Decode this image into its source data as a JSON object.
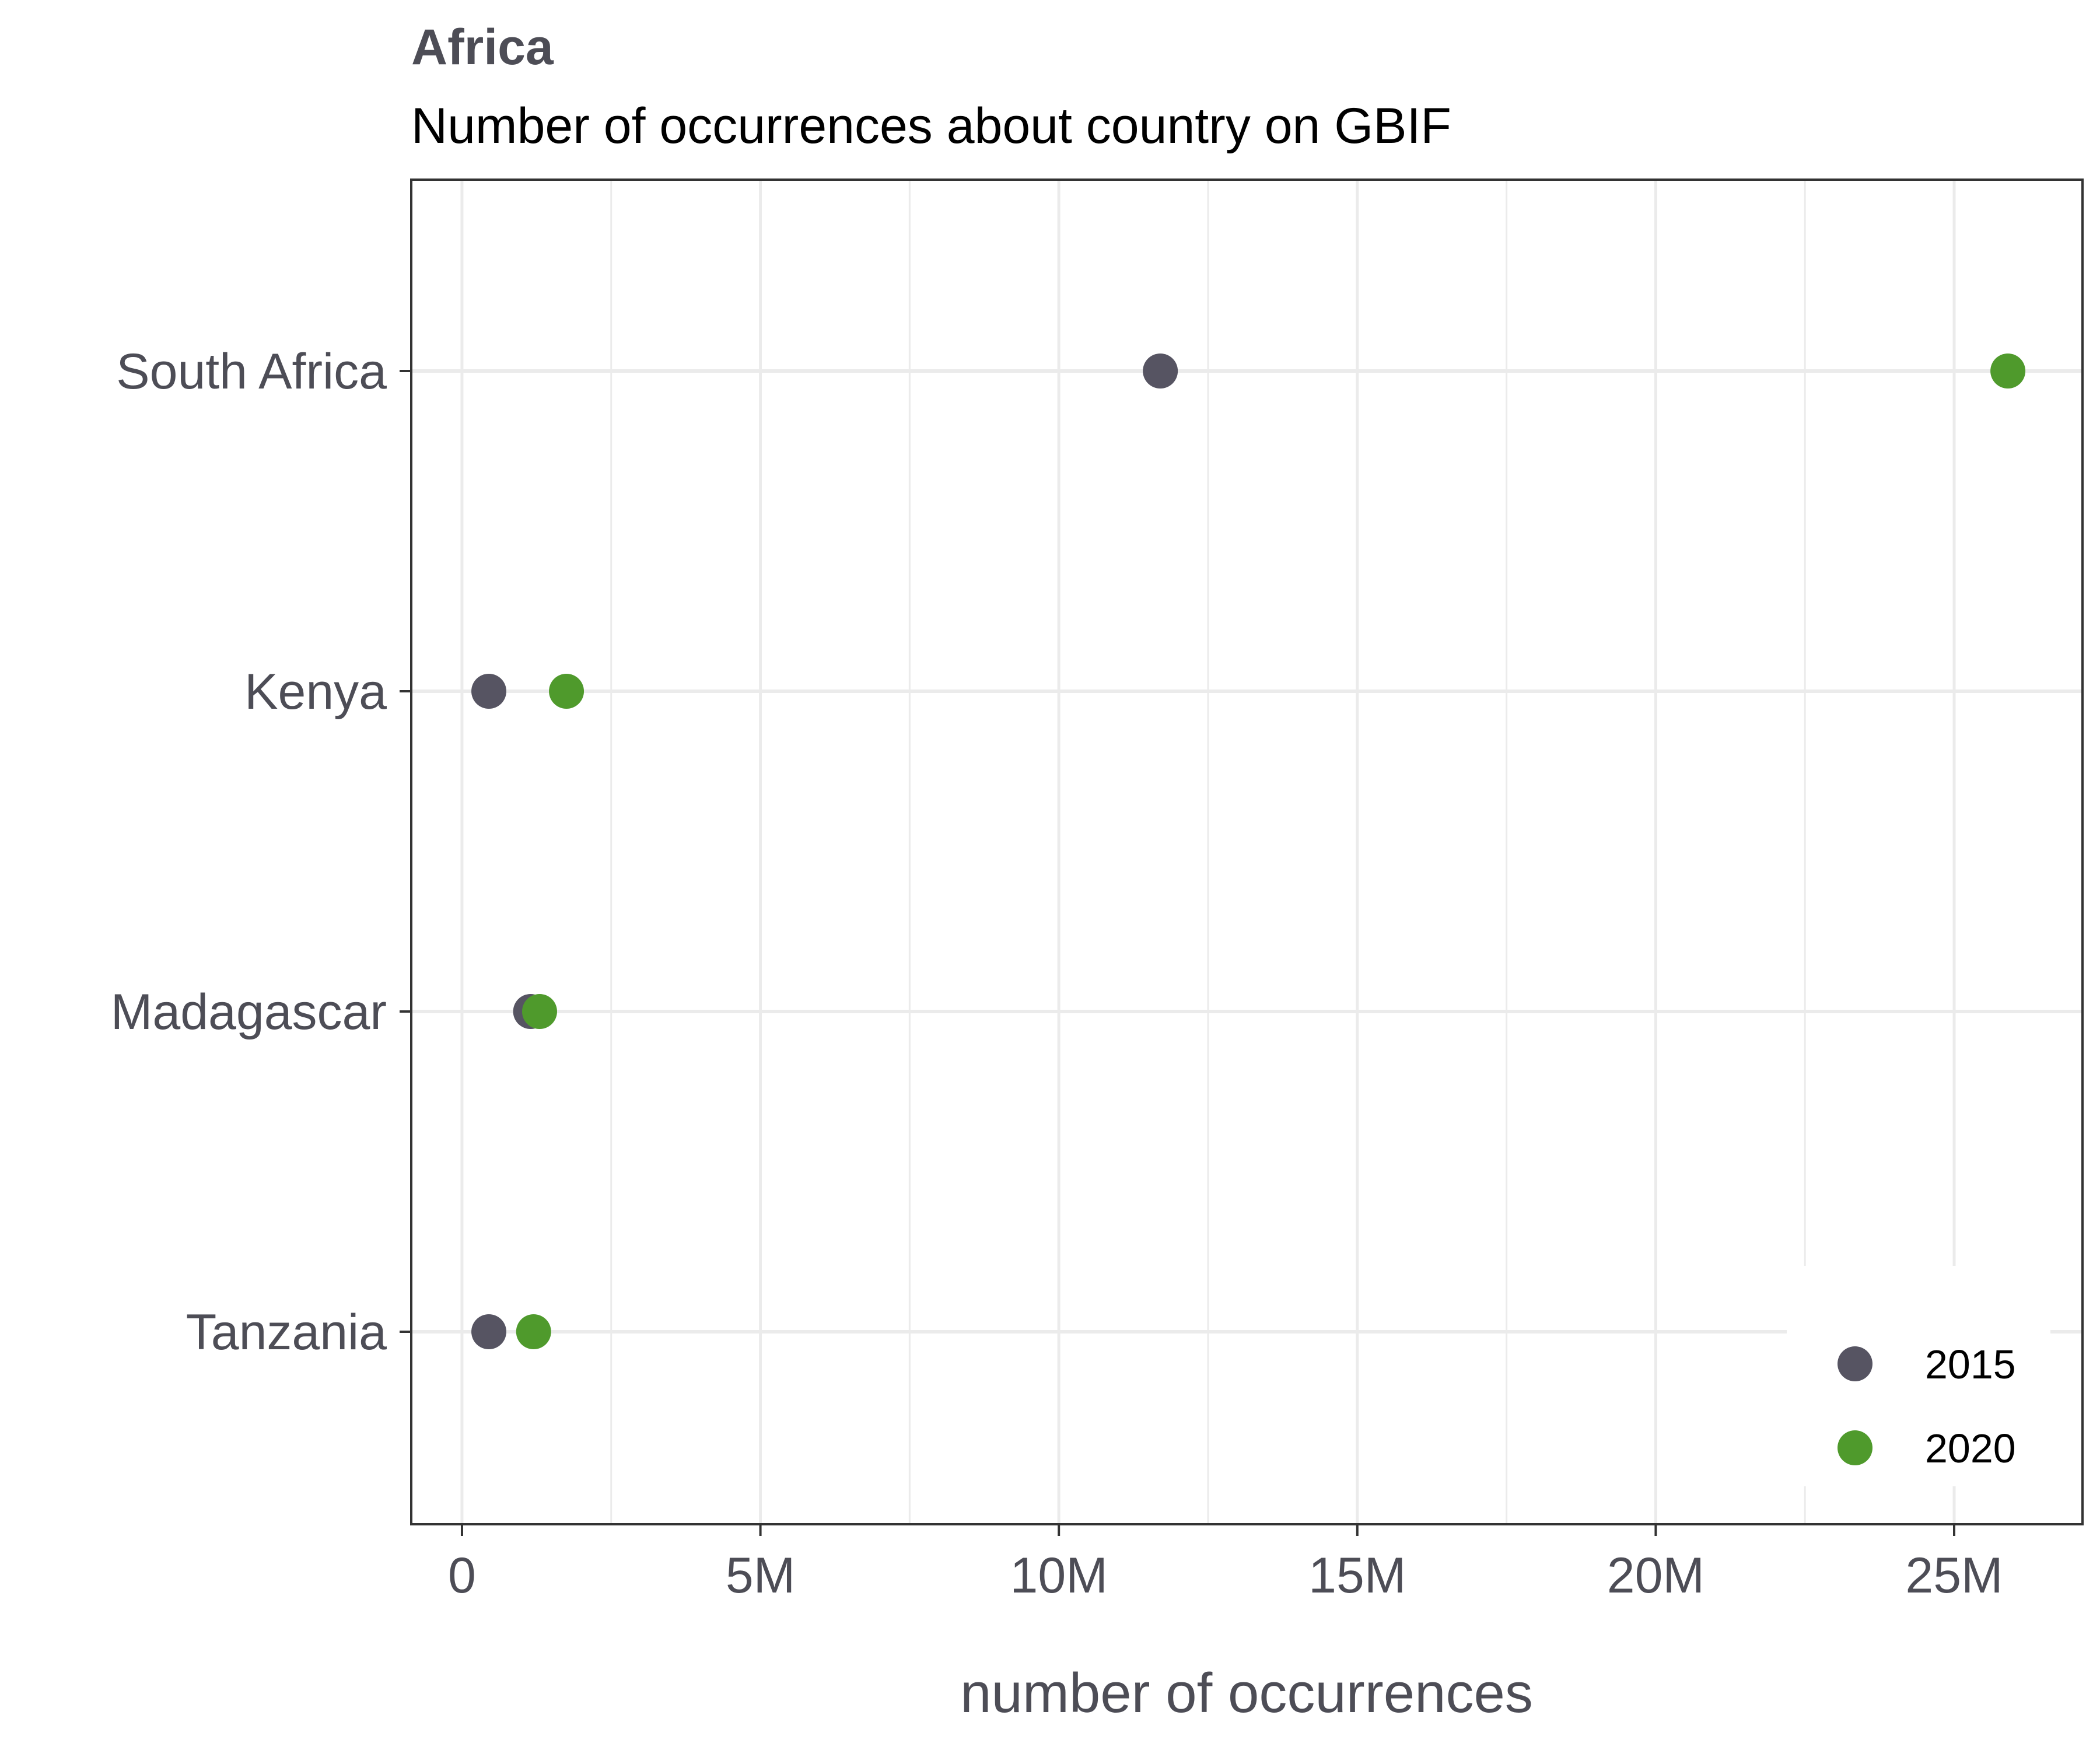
{
  "chart_data": {
    "type": "scatter",
    "title": "Africa",
    "subtitle": "Number of occurrences about country on GBIF",
    "xlabel": "number of occurrences",
    "ylabel": "",
    "categories": [
      "Tanzania",
      "Madagascar",
      "Kenya",
      "South Africa"
    ],
    "xlim": [
      -850000,
      27150000
    ],
    "xticks": [
      0,
      5000000,
      10000000,
      15000000,
      20000000,
      25000000
    ],
    "xtick_labels": [
      "0",
      "5M",
      "10M",
      "15M",
      "20M",
      "25M"
    ],
    "grid": true,
    "legend_position": "bottom-right",
    "series": [
      {
        "name": "2015",
        "color": "#565462",
        "values": [
          450000,
          1150000,
          450000,
          11700000
        ]
      },
      {
        "name": "2020",
        "color": "#4f9a2c",
        "values": [
          1200000,
          1300000,
          1750000,
          25900000
        ]
      }
    ]
  },
  "colors": {
    "text": "#4d4d56",
    "grid": "#ebebeb",
    "panel_border": "#333333",
    "background": "#ffffff"
  }
}
